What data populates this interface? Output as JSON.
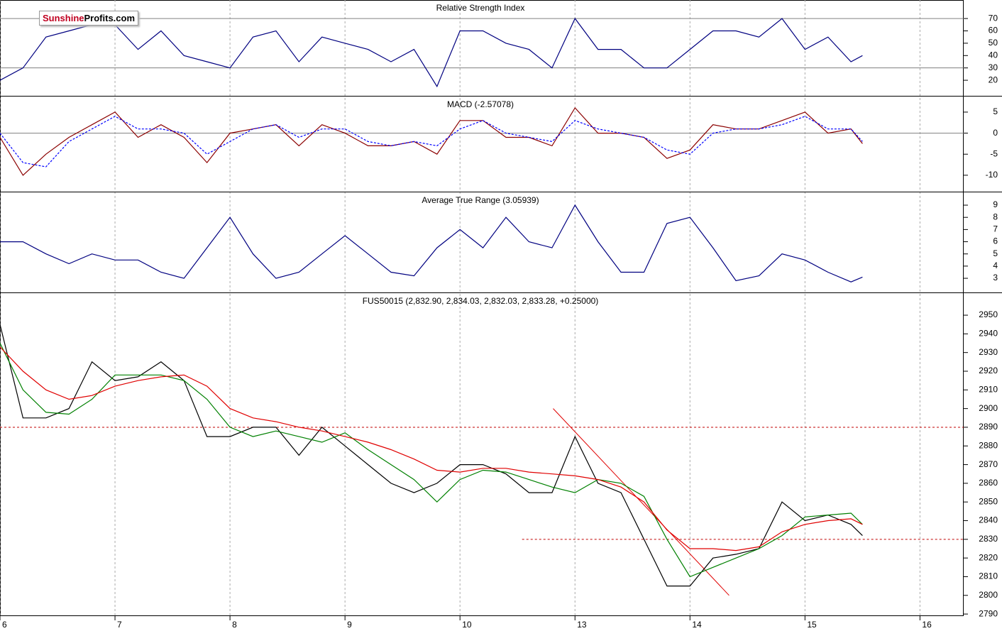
{
  "logo": {
    "part1": "Sunshine",
    "part2": "Profits.com"
  },
  "chart_data": [
    {
      "type": "line",
      "title": "Relative Strength Index",
      "x": [
        0,
        0.2,
        0.4,
        0.6,
        0.8,
        1,
        1.2,
        1.4,
        1.6,
        1.8,
        2,
        2.2,
        2.4,
        2.6,
        2.8,
        3,
        3.2,
        3.4,
        3.6,
        3.8,
        4,
        4.2,
        4.4,
        4.6,
        4.8,
        5,
        5.2,
        5.4,
        5.6,
        5.8,
        6,
        6.2,
        6.4,
        6.6,
        6.8,
        7,
        7.2,
        7.4,
        7.5
      ],
      "series": [
        {
          "color": "#000080",
          "style": "solid",
          "values": [
            20,
            30,
            55,
            60,
            65,
            65,
            45,
            60,
            40,
            35,
            30,
            55,
            60,
            35,
            55,
            50,
            45,
            35,
            45,
            15,
            60,
            60,
            50,
            45,
            30,
            70,
            45,
            45,
            30,
            30,
            45,
            60,
            60,
            55,
            70,
            45,
            55,
            35,
            40
          ]
        }
      ],
      "ylim": [
        7.4,
        85
      ],
      "yticks": [
        20,
        30,
        40,
        50,
        60,
        70
      ],
      "hlines": [
        {
          "value": 70,
          "from": 0
        },
        {
          "value": 30,
          "from": 0
        }
      ],
      "hline_color": "#808080",
      "hline_style": "solid"
    },
    {
      "type": "line",
      "title": "MACD (-2.57078)",
      "x": [
        0,
        0.2,
        0.4,
        0.6,
        0.8,
        1,
        1.2,
        1.4,
        1.6,
        1.8,
        2,
        2.2,
        2.4,
        2.6,
        2.8,
        3,
        3.2,
        3.4,
        3.6,
        3.8,
        4,
        4.2,
        4.4,
        4.6,
        4.8,
        5,
        5.2,
        5.4,
        5.6,
        5.8,
        6,
        6.2,
        6.4,
        6.6,
        6.8,
        7,
        7.2,
        7.4,
        7.5
      ],
      "series": [
        {
          "color": "#8b0000",
          "style": "solid",
          "values": [
            -1,
            -10,
            -5,
            -1,
            2,
            5,
            -1,
            2,
            -1,
            -7,
            0,
            1,
            2,
            -3,
            2,
            0,
            -3,
            -3,
            -2,
            -5,
            3,
            3,
            -1,
            -1,
            -3,
            6,
            0,
            0,
            -1,
            -6,
            -4,
            2,
            1,
            1,
            3,
            5,
            0,
            1,
            -2.5
          ]
        },
        {
          "color": "#0000ff",
          "style": "dashed",
          "values": [
            0,
            -7,
            -8,
            -2,
            1,
            4,
            1,
            1,
            0,
            -5,
            -2,
            1,
            2,
            -1,
            1,
            1,
            -2,
            -3,
            -2,
            -3,
            1,
            3,
            0,
            -1,
            -2,
            3,
            1,
            0,
            -1,
            -4,
            -5,
            0,
            1,
            1,
            2,
            4,
            1,
            1,
            -2
          ]
        }
      ],
      "ylim": [
        -13.9,
        8.7
      ],
      "yticks": [
        -10,
        -5,
        0,
        5
      ],
      "hlines": [
        {
          "value": 0,
          "from": 0
        }
      ],
      "hline_color": "#808080",
      "hline_style": "solid"
    },
    {
      "type": "line",
      "title": "Average True Range (3.05939)",
      "x": [
        0,
        0.2,
        0.4,
        0.6,
        0.8,
        1,
        1.2,
        1.4,
        1.6,
        1.8,
        2,
        2.2,
        2.4,
        2.6,
        2.8,
        3,
        3.2,
        3.4,
        3.6,
        3.8,
        4,
        4.2,
        4.4,
        4.6,
        4.8,
        5,
        5.2,
        5.4,
        5.6,
        5.8,
        6,
        6.2,
        6.4,
        6.6,
        6.8,
        7,
        7.2,
        7.4,
        7.5
      ],
      "series": [
        {
          "color": "#000080",
          "style": "solid",
          "values": [
            6,
            6,
            5,
            4.2,
            5,
            4.5,
            4.5,
            3.5,
            3,
            5.5,
            8,
            5,
            3,
            3.5,
            5,
            6.5,
            5,
            3.5,
            3.2,
            5.5,
            7,
            5.5,
            8,
            6,
            5.5,
            9,
            6,
            3.5,
            3.5,
            7.5,
            8,
            5.5,
            2.8,
            3.2,
            5,
            4.5,
            3.5,
            2.7,
            3.1
          ]
        }
      ],
      "ylim": [
        1.84,
        10.05
      ],
      "yticks": [
        3,
        4,
        5,
        6,
        7,
        8,
        9
      ]
    },
    {
      "type": "line",
      "title": "FUS50015 (2,832.90, 2,834.03, 2,832.03, 2,833.28, +0.25000)",
      "x": [
        0,
        0.2,
        0.4,
        0.6,
        0.8,
        1,
        1.2,
        1.4,
        1.6,
        1.8,
        2,
        2.2,
        2.4,
        2.6,
        2.8,
        3,
        3.2,
        3.4,
        3.6,
        3.8,
        4,
        4.2,
        4.4,
        4.6,
        4.8,
        5,
        5.2,
        5.4,
        5.6,
        5.8,
        6,
        6.2,
        6.4,
        6.6,
        6.8,
        7,
        7.2,
        7.4,
        7.5
      ],
      "series": [
        {
          "color": "#000000",
          "style": "solid",
          "values": [
            2945,
            2895,
            2895,
            2900,
            2925,
            2915,
            2917,
            2925,
            2915,
            2885,
            2885,
            2890,
            2890,
            2875,
            2890,
            2880,
            2870,
            2860,
            2855,
            2860,
            2870,
            2870,
            2865,
            2855,
            2855,
            2885,
            2860,
            2855,
            2830,
            2805,
            2805,
            2820,
            2822,
            2825,
            2850,
            2840,
            2843,
            2838,
            2832
          ]
        },
        {
          "color": "#008000",
          "style": "solid",
          "values": [
            2935,
            2910,
            2898,
            2897,
            2905,
            2918,
            2918,
            2918,
            2915,
            2905,
            2890,
            2885,
            2888,
            2885,
            2882,
            2887,
            2878,
            2870,
            2862,
            2850,
            2862,
            2867,
            2866,
            2862,
            2858,
            2855,
            2862,
            2860,
            2853,
            2830,
            2810,
            2815,
            2820,
            2825,
            2832,
            2842,
            2843,
            2844,
            2838
          ]
        },
        {
          "color": "#e00000",
          "style": "solid",
          "values": [
            2933,
            2920,
            2910,
            2905,
            2907,
            2912,
            2915,
            2917,
            2918,
            2912,
            2900,
            2895,
            2893,
            2890,
            2888,
            2885,
            2882,
            2878,
            2873,
            2867,
            2866,
            2868,
            2868,
            2866,
            2865,
            2864,
            2862,
            2858,
            2850,
            2835,
            2825,
            2825,
            2824,
            2826,
            2834,
            2838,
            2840,
            2841,
            2838
          ]
        }
      ],
      "trendline": {
        "x": [
          4.81,
          6.34
        ],
        "values": [
          2900,
          2800
        ],
        "color": "#e00000"
      },
      "ylim": [
        2788.9,
        2961.8
      ],
      "yticks": [
        2790,
        2800,
        2810,
        2820,
        2830,
        2840,
        2850,
        2860,
        2870,
        2880,
        2890,
        2900,
        2910,
        2920,
        2930,
        2940,
        2950
      ],
      "hlines": [
        {
          "value": 2890,
          "from": 0
        },
        {
          "value": 2830,
          "from": 4.54
        }
      ],
      "hline_color": "#c00000",
      "hline_style": "dashed",
      "xlim": [
        0,
        8.38
      ],
      "xticks": [
        {
          "value": 0,
          "label": "6"
        },
        {
          "value": 1,
          "label": "7"
        },
        {
          "value": 2,
          "label": "8"
        },
        {
          "value": 3,
          "label": "9"
        },
        {
          "value": 4,
          "label": "10"
        },
        {
          "value": 5,
          "label": "13"
        },
        {
          "value": 6,
          "label": "14"
        },
        {
          "value": 7,
          "label": "15"
        },
        {
          "value": 8,
          "label": "16"
        }
      ]
    }
  ]
}
